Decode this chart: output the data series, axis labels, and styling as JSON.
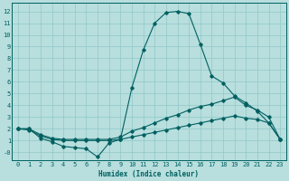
{
  "bg_color": "#b8dede",
  "line_color": "#006060",
  "grid_color": "#90c8c8",
  "xlabel": "Humidex (Indice chaleur)",
  "xlim": [
    -0.5,
    23.5
  ],
  "ylim": [
    -0.7,
    12.7
  ],
  "yticks": [
    0,
    1,
    2,
    3,
    4,
    5,
    6,
    7,
    8,
    9,
    10,
    11,
    12
  ],
  "xticks": [
    0,
    1,
    2,
    3,
    4,
    5,
    6,
    7,
    8,
    9,
    10,
    11,
    12,
    13,
    14,
    15,
    16,
    17,
    18,
    19,
    20,
    21,
    22,
    23
  ],
  "line1_x": [
    0,
    1,
    2,
    3,
    4,
    5,
    6,
    7,
    8,
    9,
    10,
    11,
    12,
    13,
    14,
    15,
    16,
    17,
    18,
    19,
    20,
    21,
    22,
    23
  ],
  "line1_y": [
    2.0,
    2.0,
    1.2,
    0.9,
    0.5,
    0.4,
    0.3,
    -0.4,
    0.8,
    1.1,
    5.5,
    8.7,
    11.0,
    11.9,
    12.0,
    11.8,
    9.2,
    6.5,
    5.9,
    4.8,
    4.2,
    3.5,
    2.5,
    1.1
  ],
  "line2_x": [
    0,
    1,
    2,
    3,
    4,
    5,
    6,
    7,
    8,
    9,
    10,
    11,
    12,
    13,
    14,
    15,
    16,
    17,
    18,
    19,
    20,
    21,
    22,
    23
  ],
  "line2_y": [
    2.0,
    2.0,
    1.5,
    1.2,
    1.1,
    1.1,
    1.1,
    1.1,
    1.1,
    1.3,
    1.8,
    2.1,
    2.5,
    2.9,
    3.2,
    3.6,
    3.9,
    4.1,
    4.4,
    4.7,
    4.0,
    3.6,
    3.0,
    1.1
  ],
  "line3_x": [
    0,
    1,
    2,
    3,
    4,
    5,
    6,
    7,
    8,
    9,
    10,
    11,
    12,
    13,
    14,
    15,
    16,
    17,
    18,
    19,
    20,
    21,
    22,
    23
  ],
  "line3_y": [
    2.0,
    1.9,
    1.4,
    1.1,
    1.0,
    1.0,
    1.0,
    1.0,
    1.0,
    1.1,
    1.3,
    1.5,
    1.7,
    1.9,
    2.1,
    2.3,
    2.5,
    2.7,
    2.9,
    3.1,
    2.9,
    2.8,
    2.5,
    1.1
  ]
}
